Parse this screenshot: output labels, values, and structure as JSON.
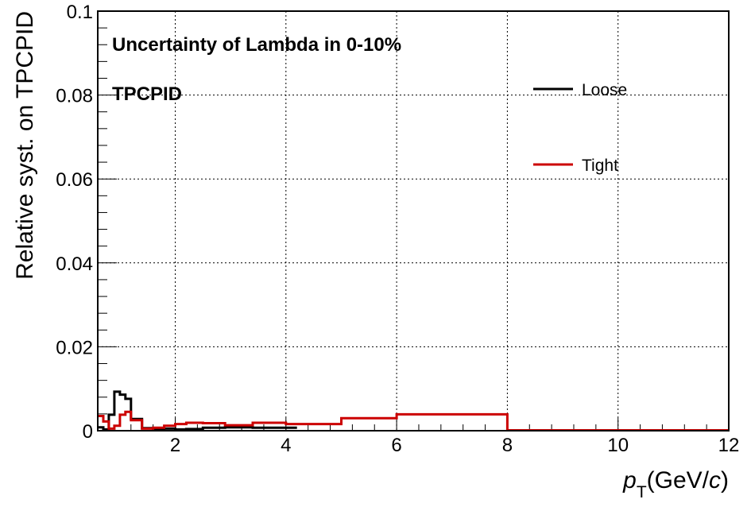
{
  "chart_data": {
    "type": "line",
    "drawstyle": "step",
    "ylabel": "Relative syst. on TPCPID",
    "xlabel_var": "p",
    "xlabel_sub": "T",
    "xlabel_unit_pre": "(GeV/",
    "xlabel_unit_c": "c",
    "xlabel_unit_post": ")",
    "annotations": [
      "Uncertainty of Lambda in 0-10%",
      "TPCPID"
    ],
    "xlim": [
      0.6,
      12
    ],
    "ylim": [
      0,
      0.1
    ],
    "grid": true,
    "x_ticks": [
      {
        "v": 2,
        "label": "2"
      },
      {
        "v": 4,
        "label": "4"
      },
      {
        "v": 6,
        "label": "6"
      },
      {
        "v": 8,
        "label": "8"
      },
      {
        "v": 10,
        "label": "10"
      },
      {
        "v": 12,
        "label": "12"
      }
    ],
    "y_ticks": [
      {
        "v": 0,
        "label": "0"
      },
      {
        "v": 0.02,
        "label": "0.02"
      },
      {
        "v": 0.04,
        "label": "0.04"
      },
      {
        "v": 0.06,
        "label": "0.06"
      },
      {
        "v": 0.08,
        "label": "0.08"
      },
      {
        "v": 0.1,
        "label": "0.1"
      }
    ],
    "legend_placement": "top-right",
    "series": [
      {
        "name": "Loose",
        "color": "#000000",
        "edges": [
          0.6,
          0.7,
          0.8,
          0.9,
          1.0,
          1.1,
          1.2,
          1.4,
          1.6,
          1.8,
          2.0,
          2.2,
          2.5,
          2.9,
          3.4,
          4.2
        ],
        "values": [
          0.0008,
          0.0003,
          0.0038,
          0.0093,
          0.0086,
          0.0076,
          0.0028,
          0.0006,
          0.0003,
          0.0005,
          0.0003,
          0.0004,
          0.0007,
          0.0008,
          0.0007
        ]
      },
      {
        "name": "Tight",
        "color": "#cc0000",
        "edges": [
          0.6,
          0.7,
          0.8,
          0.9,
          1.0,
          1.1,
          1.2,
          1.4,
          1.6,
          1.8,
          2.0,
          2.2,
          2.5,
          2.9,
          3.4,
          4.0,
          5.0,
          6.0,
          8.0,
          12.0
        ],
        "values": [
          0.0035,
          0.0022,
          0.0005,
          0.0012,
          0.0038,
          0.0045,
          0.0025,
          0.0005,
          0.0007,
          0.0012,
          0.0016,
          0.0019,
          0.0018,
          0.0013,
          0.0019,
          0.0016,
          0.003,
          0.0039,
          0.0001
        ]
      }
    ]
  }
}
